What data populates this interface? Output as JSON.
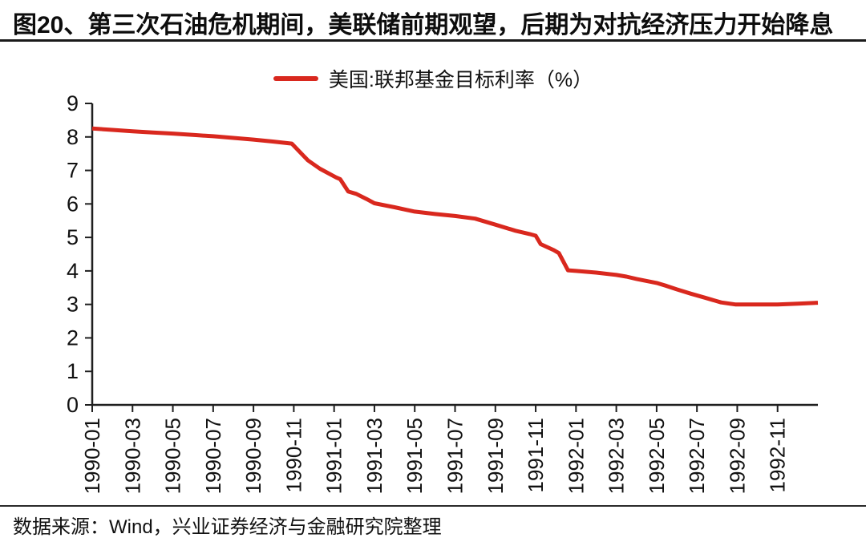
{
  "header": {
    "title": "图20、第三次石油危机期间，美联储前期观望，后期为对抗经济压力开始降息"
  },
  "legend": {
    "label": "美国:联邦基金目标利率（%）",
    "line_color": "#d9281e"
  },
  "footer": {
    "source": "数据来源：Wind，兴业证券经济与金融研究院整理"
  },
  "chart_data": {
    "type": "line",
    "title": "",
    "xlabel": "",
    "ylabel": "",
    "grid": false,
    "legend_position": "top-center",
    "ylim": [
      0,
      9
    ],
    "yticks": [
      0,
      1,
      2,
      3,
      4,
      5,
      6,
      7,
      8,
      9
    ],
    "xlim": [
      0,
      36
    ],
    "x_unit": "months since 1990-01",
    "x_tick_positions": [
      0,
      2,
      4,
      6,
      8,
      10,
      12,
      14,
      16,
      18,
      20,
      22,
      24,
      26,
      28,
      30,
      32,
      34
    ],
    "x_tick_labels": [
      "1990-01",
      "1990-03",
      "1990-05",
      "1990-07",
      "1990-09",
      "1990-11",
      "1991-01",
      "1991-03",
      "1991-05",
      "1991-07",
      "1991-09",
      "1991-11",
      "1992-01",
      "1992-03",
      "1992-05",
      "1992-07",
      "1992-09",
      "1992-11"
    ],
    "series": [
      {
        "name": "美国:联邦基金目标利率（%）",
        "color": "#d9281e",
        "points": [
          [
            0,
            8.25
          ],
          [
            1,
            8.21
          ],
          [
            2,
            8.17
          ],
          [
            3,
            8.13
          ],
          [
            4,
            8.1
          ],
          [
            5,
            8.06
          ],
          [
            6,
            8.02
          ],
          [
            7,
            7.97
          ],
          [
            8,
            7.92
          ],
          [
            9,
            7.86
          ],
          [
            9.9,
            7.8
          ],
          [
            10.7,
            7.3
          ],
          [
            11.3,
            7.05
          ],
          [
            12.1,
            6.79
          ],
          [
            12.3,
            6.74
          ],
          [
            12.7,
            6.37
          ],
          [
            13.1,
            6.3
          ],
          [
            13.6,
            6.15
          ],
          [
            14,
            6.02
          ],
          [
            15,
            5.9
          ],
          [
            16,
            5.77
          ],
          [
            17,
            5.7
          ],
          [
            18,
            5.64
          ],
          [
            19,
            5.56
          ],
          [
            20,
            5.38
          ],
          [
            21,
            5.2
          ],
          [
            21.7,
            5.1
          ],
          [
            22,
            5.05
          ],
          [
            22.25,
            4.8
          ],
          [
            22.9,
            4.62
          ],
          [
            23.15,
            4.53
          ],
          [
            23.6,
            4.02
          ],
          [
            24,
            4.0
          ],
          [
            25,
            3.95
          ],
          [
            26,
            3.88
          ],
          [
            26.5,
            3.83
          ],
          [
            27,
            3.76
          ],
          [
            28,
            3.64
          ],
          [
            28.5,
            3.55
          ],
          [
            29,
            3.45
          ],
          [
            29.7,
            3.32
          ],
          [
            30.4,
            3.2
          ],
          [
            31.2,
            3.06
          ],
          [
            31.9,
            3.0
          ],
          [
            33,
            3.0
          ],
          [
            34,
            3.0
          ],
          [
            35,
            3.02
          ],
          [
            36,
            3.05
          ]
        ]
      }
    ]
  }
}
